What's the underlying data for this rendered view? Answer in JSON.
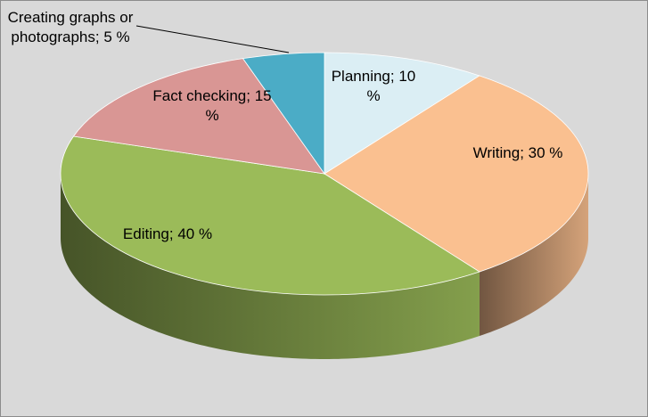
{
  "chart_data": {
    "type": "pie",
    "categories": [
      "Planning",
      "Writing",
      "Editing",
      "Fact checking",
      "Creating graphs or photographs"
    ],
    "values": [
      10,
      30,
      40,
      15,
      5
    ],
    "value_labels": [
      "10 %",
      "30 %",
      "40 %",
      "15 %",
      "5 %"
    ],
    "label_separator": "; ",
    "colors": [
      "#dbeef4",
      "#fac090",
      "#9bbb59",
      "#d99694",
      "#4bacc6"
    ]
  }
}
